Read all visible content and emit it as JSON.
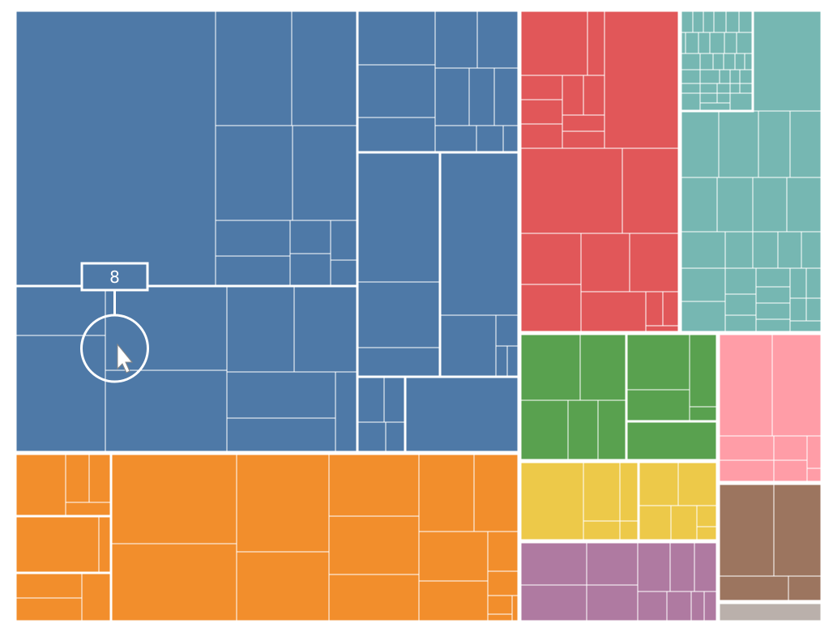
{
  "chart_data": {
    "type": "treemap",
    "title": "",
    "colors": {
      "blue": "#4e79a7",
      "orange": "#f28e2c",
      "red": "#e15759",
      "teal": "#76b7b2",
      "green": "#59a14f",
      "yellow": "#edc949",
      "pink": "#ff9da7",
      "purple": "#af7aa1",
      "brown": "#9c755f",
      "gray": "#bab0ab"
    },
    "groups": [
      {
        "color": "blue",
        "share": 0.418
      },
      {
        "color": "orange",
        "share": 0.148
      },
      {
        "color": "red",
        "share": 0.105
      },
      {
        "color": "teal",
        "share": 0.094
      },
      {
        "color": "green",
        "share": 0.047
      },
      {
        "color": "yellow",
        "share": 0.031
      },
      {
        "color": "pink",
        "share": 0.031
      },
      {
        "color": "purple",
        "share": 0.03
      },
      {
        "color": "brown",
        "share": 0.024
      },
      {
        "color": "gray",
        "share": 0.004
      }
    ],
    "tooltip": {
      "label": "8"
    },
    "cursor_icon": "pointer-cursor-icon"
  }
}
